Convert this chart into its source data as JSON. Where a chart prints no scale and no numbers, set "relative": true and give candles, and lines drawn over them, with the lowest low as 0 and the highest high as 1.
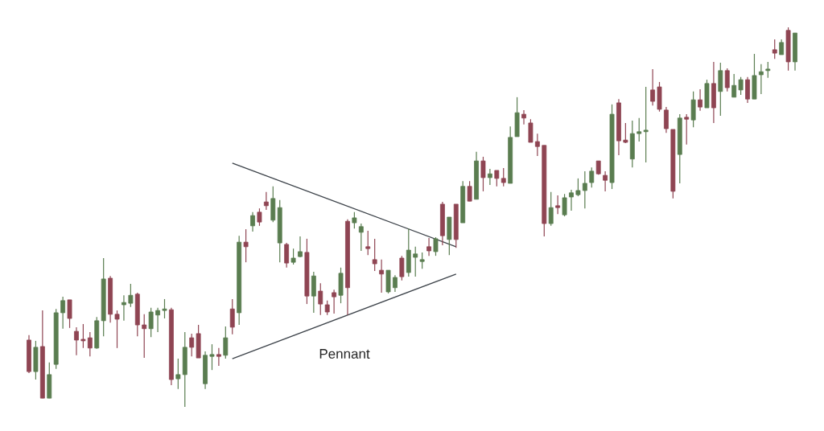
{
  "chart_data": {
    "type": "candlestick",
    "relative": true,
    "categories": [
      null,
      null,
      null,
      null,
      null,
      null,
      null,
      null,
      null,
      null,
      null,
      null,
      null,
      null,
      null,
      null,
      null,
      null,
      null,
      null,
      null,
      null,
      null,
      null,
      null,
      null,
      null,
      null,
      null,
      null,
      null,
      null,
      null,
      null,
      null,
      null,
      null,
      null,
      null,
      null,
      null,
      null,
      null,
      null,
      null,
      null,
      null,
      null,
      null,
      null,
      null,
      null,
      null,
      null,
      null,
      null,
      null,
      null,
      null,
      null,
      null,
      null,
      null,
      null,
      null,
      null,
      null,
      null,
      null,
      null,
      null,
      null,
      null,
      null,
      null,
      null,
      null,
      null,
      null,
      null,
      null,
      null,
      null,
      null,
      null,
      null,
      null,
      null,
      null,
      null,
      null,
      null,
      null,
      null,
      null,
      null,
      null,
      null,
      null,
      null,
      null,
      null,
      null,
      null,
      null,
      null,
      null,
      null,
      null,
      null,
      null,
      null,
      null,
      null
    ],
    "ohlc": [
      [
        0.176,
        0.189,
        0.089,
        0.093
      ],
      [
        0.093,
        0.174,
        0.072,
        0.157
      ],
      [
        0.159,
        0.254,
        0.023,
        0.023
      ],
      [
        0.023,
        0.117,
        0.023,
        0.085
      ],
      [
        0.112,
        0.258,
        0.1,
        0.248
      ],
      [
        0.248,
        0.29,
        0.206,
        0.28
      ],
      [
        0.282,
        0.282,
        0.208,
        0.233
      ],
      [
        0.199,
        0.21,
        0.136,
        0.176
      ],
      [
        0.178,
        0.218,
        0.155,
        0.174
      ],
      [
        0.182,
        0.197,
        0.133,
        0.155
      ],
      [
        0.155,
        0.237,
        0.153,
        0.227
      ],
      [
        0.227,
        0.392,
        0.186,
        0.337
      ],
      [
        0.339,
        0.345,
        0.222,
        0.244
      ],
      [
        0.244,
        0.254,
        0.155,
        0.231
      ],
      [
        0.269,
        0.294,
        0.227,
        0.275
      ],
      [
        0.273,
        0.324,
        0.263,
        0.294
      ],
      [
        0.297,
        0.301,
        0.186,
        0.216
      ],
      [
        0.216,
        0.244,
        0.129,
        0.206
      ],
      [
        0.206,
        0.261,
        0.184,
        0.25
      ],
      [
        0.242,
        0.261,
        0.197,
        0.254
      ],
      [
        0.254,
        0.284,
        0.233,
        0.258
      ],
      [
        0.256,
        0.261,
        0.057,
        0.072
      ],
      [
        0.074,
        0.127,
        0.047,
        0.085
      ],
      [
        0.085,
        0.197,
        0.0,
        0.157
      ],
      [
        0.182,
        0.193,
        0.133,
        0.157
      ],
      [
        0.193,
        0.216,
        0.129,
        0.129
      ],
      [
        0.061,
        0.146,
        0.047,
        0.136
      ],
      [
        0.133,
        0.165,
        0.097,
        0.138
      ],
      [
        0.138,
        0.155,
        0.108,
        0.133
      ],
      [
        0.136,
        0.212,
        0.127,
        0.182
      ],
      [
        0.258,
        0.284,
        0.191,
        0.21
      ],
      [
        0.248,
        0.451,
        0.216,
        0.434
      ],
      [
        0.434,
        0.468,
        0.381,
        0.422
      ],
      [
        0.477,
        0.513,
        0.462,
        0.504
      ],
      [
        0.513,
        0.523,
        0.477,
        0.487
      ],
      [
        0.54,
        0.566,
        0.519,
        0.53
      ],
      [
        0.492,
        0.581,
        0.487,
        0.549
      ],
      [
        0.432,
        0.545,
        0.381,
        0.525
      ],
      [
        0.428,
        0.432,
        0.367,
        0.379
      ],
      [
        0.381,
        0.417,
        0.375,
        0.392
      ],
      [
        0.396,
        0.449,
        0.394,
        0.409
      ],
      [
        0.407,
        0.443,
        0.271,
        0.292
      ],
      [
        0.292,
        0.356,
        0.248,
        0.345
      ],
      [
        0.305,
        0.326,
        0.242,
        0.271
      ],
      [
        0.269,
        0.28,
        0.242,
        0.25
      ],
      [
        0.301,
        0.309,
        0.246,
        0.29
      ],
      [
        0.294,
        0.367,
        0.273,
        0.352
      ],
      [
        0.489,
        0.494,
        0.242,
        0.314
      ],
      [
        0.485,
        0.513,
        0.47,
        0.498
      ],
      [
        0.46,
        0.483,
        0.411,
        0.475
      ],
      [
        0.422,
        0.464,
        0.4,
        0.417
      ],
      [
        0.388,
        0.443,
        0.358,
        0.377
      ],
      [
        0.36,
        0.388,
        0.301,
        0.35
      ],
      [
        0.303,
        0.36,
        0.299,
        0.36
      ],
      [
        0.314,
        0.347,
        0.303,
        0.341
      ],
      [
        0.392,
        0.398,
        0.333,
        0.343
      ],
      [
        0.354,
        0.47,
        0.343,
        0.413
      ],
      [
        0.394,
        0.422,
        0.343,
        0.403
      ],
      [
        0.383,
        0.407,
        0.364,
        0.388
      ],
      [
        0.422,
        0.445,
        0.398,
        0.411
      ],
      [
        0.409,
        0.447,
        0.398,
        0.443
      ],
      [
        0.534,
        0.54,
        0.426,
        0.451
      ],
      [
        0.441,
        0.5,
        0.4,
        0.5
      ],
      [
        0.534,
        0.534,
        0.419,
        0.441
      ],
      [
        0.485,
        0.595,
        0.485,
        0.581
      ],
      [
        0.581,
        0.595,
        0.542,
        0.542
      ],
      [
        0.547,
        0.672,
        0.547,
        0.648
      ],
      [
        0.648,
        0.659,
        0.568,
        0.604
      ],
      [
        0.604,
        0.627,
        0.585,
        0.614
      ],
      [
        0.623,
        0.623,
        0.581,
        0.602
      ],
      [
        0.602,
        0.629,
        0.581,
        0.591
      ],
      [
        0.589,
        0.739,
        0.589,
        0.71
      ],
      [
        0.712,
        0.816,
        0.712,
        0.775
      ],
      [
        0.771,
        0.782,
        0.744,
        0.761
      ],
      [
        0.748,
        0.758,
        0.697,
        0.697
      ],
      [
        0.699,
        0.72,
        0.661,
        0.686
      ],
      [
        0.689,
        0.689,
        0.449,
        0.483
      ],
      [
        0.483,
        0.566,
        0.477,
        0.525
      ],
      [
        0.53,
        0.557,
        0.508,
        0.525
      ],
      [
        0.506,
        0.561,
        0.502,
        0.551
      ],
      [
        0.553,
        0.572,
        0.517,
        0.564
      ],
      [
        0.559,
        0.602,
        0.555,
        0.57
      ],
      [
        0.57,
        0.621,
        0.523,
        0.589
      ],
      [
        0.591,
        0.631,
        0.578,
        0.621
      ],
      [
        0.648,
        0.648,
        0.612,
        0.614
      ],
      [
        0.61,
        0.621,
        0.568,
        0.597
      ],
      [
        0.591,
        0.797,
        0.574,
        0.771
      ],
      [
        0.801,
        0.811,
        0.663,
        0.701
      ],
      [
        0.703,
        0.748,
        0.695,
        0.697
      ],
      [
        0.653,
        0.754,
        0.631,
        0.72
      ],
      [
        0.72,
        0.761,
        0.699,
        0.725
      ],
      [
        0.725,
        0.843,
        0.644,
        0.729
      ],
      [
        0.835,
        0.89,
        0.794,
        0.805
      ],
      [
        0.843,
        0.856,
        0.778,
        0.784
      ],
      [
        0.782,
        0.79,
        0.722,
        0.733
      ],
      [
        0.731,
        0.731,
        0.549,
        0.568
      ],
      [
        0.665,
        0.771,
        0.589,
        0.761
      ],
      [
        0.763,
        0.771,
        0.691,
        0.758
      ],
      [
        0.756,
        0.831,
        0.737,
        0.809
      ],
      [
        0.809,
        0.837,
        0.78,
        0.79
      ],
      [
        0.788,
        0.862,
        0.788,
        0.852
      ],
      [
        0.852,
        0.909,
        0.748,
        0.788
      ],
      [
        0.831,
        0.907,
        0.767,
        0.886
      ],
      [
        0.886,
        0.892,
        0.831,
        0.841
      ],
      [
        0.816,
        0.877,
        0.816,
        0.847
      ],
      [
        0.835,
        0.869,
        0.822,
        0.862
      ],
      [
        0.862,
        0.869,
        0.801,
        0.811
      ],
      [
        0.811,
        0.93,
        0.811,
        0.873
      ],
      [
        0.875,
        0.903,
        0.824,
        0.883
      ],
      [
        0.886,
        0.909,
        0.867,
        0.89
      ],
      [
        0.941,
        0.968,
        0.917,
        0.932
      ],
      [
        0.928,
        0.968,
        0.928,
        0.96
      ],
      [
        0.992,
        1.0,
        0.886,
        0.909
      ],
      [
        0.909,
        0.985,
        0.886,
        0.985
      ]
    ],
    "colors": [
      "#8f4553",
      "#5a7d50",
      "#8f4553",
      "#5a7d50",
      "#5a7d50",
      "#5a7d50",
      "#8f4553",
      "#8f4553",
      "#8f4553",
      "#8f4553",
      "#5a7d50",
      "#5a7d50",
      "#8f4553",
      "#8f4553",
      "#5a7d50",
      "#5a7d50",
      "#8f4553",
      "#8f4553",
      "#5a7d50",
      "#5a7d50",
      "#5a7d50",
      "#8f4553",
      "#5a7d50",
      "#5a7d50",
      "#8f4553",
      "#8f4553",
      "#5a7d50",
      "#5a7d50",
      "#8f4553",
      "#5a7d50",
      "#8f4553",
      "#5a7d50",
      "#8f4553",
      "#5a7d50",
      "#8f4553",
      "#8f4553",
      "#5a7d50",
      "#5a7d50",
      "#8f4553",
      "#5a7d50",
      "#5a7d50",
      "#8f4553",
      "#5a7d50",
      "#8f4553",
      "#8f4553",
      "#8f4553",
      "#5a7d50",
      "#8f4553",
      "#5a7d50",
      "#5a7d50",
      "#8f4553",
      "#8f4553",
      "#8f4553",
      "#5a7d50",
      "#5a7d50",
      "#8f4553",
      "#5a7d50",
      "#5a7d50",
      "#5a7d50",
      "#8f4553",
      "#5a7d50",
      "#8f4553",
      "#5a7d50",
      "#8f4553",
      "#5a7d50",
      "#8f4553",
      "#5a7d50",
      "#8f4553",
      "#5a7d50",
      "#8f4553",
      "#8f4553",
      "#5a7d50",
      "#5a7d50",
      "#8f4553",
      "#8f4553",
      "#8f4553",
      "#8f4553",
      "#5a7d50",
      "#8f4553",
      "#5a7d50",
      "#5a7d50",
      "#5a7d50",
      "#5a7d50",
      "#5a7d50",
      "#8f4553",
      "#8f4553",
      "#5a7d50",
      "#8f4553",
      "#8f4553",
      "#5a7d50",
      "#5a7d50",
      "#5a7d50",
      "#8f4553",
      "#8f4553",
      "#8f4553",
      "#8f4553",
      "#5a7d50",
      "#8f4553",
      "#5a7d50",
      "#8f4553",
      "#5a7d50",
      "#8f4553",
      "#5a7d50",
      "#8f4553",
      "#5a7d50",
      "#5a7d50",
      "#8f4553",
      "#5a7d50",
      "#5a7d50",
      "#5a7d50",
      "#8f4553",
      "#5a7d50",
      "#8f4553",
      "#5a7d50"
    ],
    "series": [
      {
        "type": "line",
        "color": "#3d434a",
        "values": [
          null,
          null,
          null,
          null,
          null,
          null,
          null,
          null,
          null,
          null,
          null,
          null,
          null,
          null,
          null,
          null,
          null,
          null,
          null,
          null,
          null,
          null,
          null,
          null,
          null,
          null,
          null,
          null,
          null,
          null,
          0.642,
          null,
          null,
          null,
          null,
          null,
          null,
          null,
          null,
          null,
          null,
          null,
          null,
          null,
          null,
          null,
          null,
          null,
          null,
          null,
          null,
          null,
          null,
          null,
          null,
          null,
          null,
          null,
          null,
          null,
          null,
          null,
          null,
          0.422,
          null,
          null,
          null,
          null,
          null,
          null,
          null,
          null,
          null,
          null,
          null,
          null,
          null,
          null,
          null,
          null,
          null,
          null,
          null,
          null,
          null,
          null,
          null,
          null,
          null,
          null,
          null,
          null,
          null,
          null,
          null,
          null,
          null,
          null,
          null,
          null,
          null,
          null,
          null,
          null,
          null,
          null,
          null,
          null,
          null,
          null,
          null,
          null,
          null,
          null
        ]
      },
      {
        "type": "line",
        "color": "#3d434a",
        "values": [
          null,
          null,
          null,
          null,
          null,
          null,
          null,
          null,
          null,
          null,
          null,
          null,
          null,
          null,
          null,
          null,
          null,
          null,
          null,
          null,
          null,
          null,
          null,
          null,
          null,
          null,
          null,
          null,
          null,
          null,
          0.127,
          null,
          null,
          null,
          null,
          null,
          null,
          null,
          null,
          null,
          null,
          null,
          null,
          null,
          null,
          null,
          null,
          null,
          null,
          null,
          null,
          null,
          null,
          null,
          null,
          null,
          null,
          null,
          null,
          null,
          null,
          null,
          null,
          0.35,
          null,
          null,
          null,
          null,
          null,
          null,
          null,
          null,
          null,
          null,
          null,
          null,
          null,
          null,
          null,
          null,
          null,
          null,
          null,
          null,
          null,
          null,
          null,
          null,
          null,
          null,
          null,
          null,
          null,
          null,
          null,
          null,
          null,
          null,
          null,
          null,
          null,
          null,
          null,
          null,
          null,
          null,
          null,
          null,
          null,
          null,
          null,
          null,
          null,
          null
        ]
      }
    ],
    "annotations": [
      "Pennant"
    ]
  }
}
